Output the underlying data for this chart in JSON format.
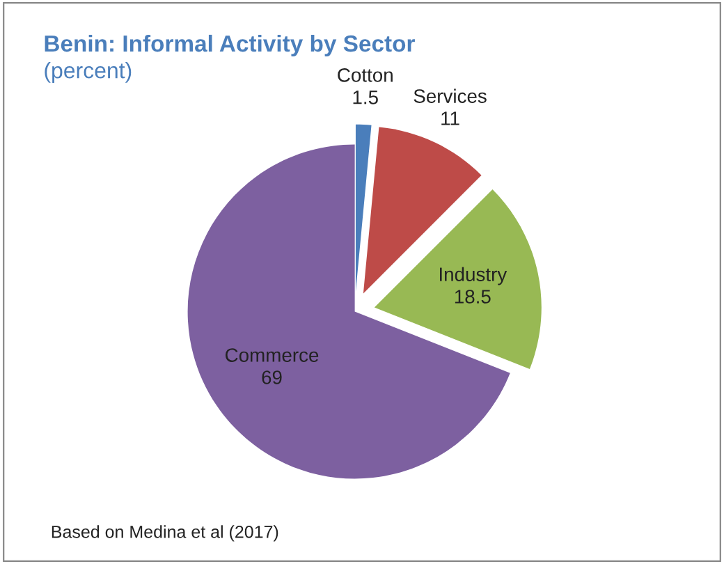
{
  "chart_data": {
    "type": "pie",
    "title": "Benin: Informal Activity by Sector",
    "subtitle": "(percent)",
    "categories": [
      "Cotton",
      "Services",
      "Industry",
      "Commerce"
    ],
    "values": [
      1.5,
      11,
      18.5,
      69
    ],
    "colors": [
      "#4a7ebb",
      "#be4b48",
      "#98b954",
      "#7d60a0"
    ],
    "data_labels": true,
    "annotations": [
      "Based on Medina et al (2017)"
    ]
  }
}
